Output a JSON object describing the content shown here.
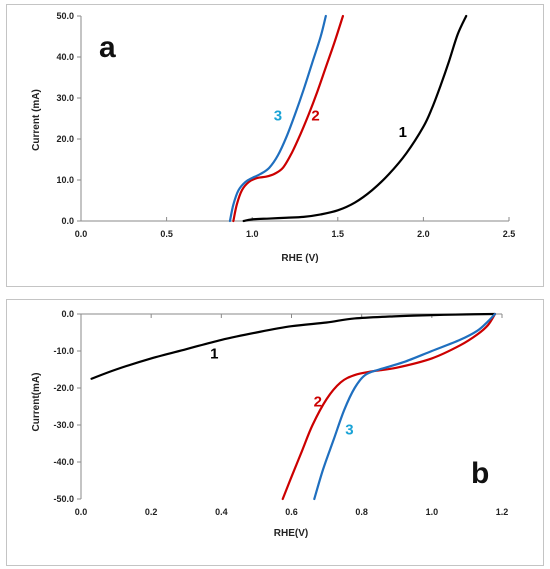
{
  "chart_data": [
    {
      "type": "line",
      "panel": "a",
      "xlabel": "RHE (V)",
      "ylabel": "Current (mA)",
      "xlim": [
        0,
        2.5
      ],
      "ylim": [
        0,
        50
      ],
      "xticks": [
        "0.0",
        "0.5",
        "1.0",
        "1.5",
        "2.0",
        "2.5"
      ],
      "yticks": [
        "0.0",
        "10.0",
        "20.0",
        "30.0",
        "40.0",
        "50.0"
      ],
      "grid": false,
      "legend": "none",
      "series": [
        {
          "name": "1",
          "color": "#000000",
          "points": [
            [
              0.95,
              0
            ],
            [
              1.0,
              0.4
            ],
            [
              1.1,
              0.6
            ],
            [
              1.2,
              0.8
            ],
            [
              1.3,
              1.0
            ],
            [
              1.4,
              1.6
            ],
            [
              1.5,
              2.6
            ],
            [
              1.6,
              4.5
            ],
            [
              1.7,
              7.5
            ],
            [
              1.8,
              11.5
            ],
            [
              1.9,
              16.5
            ],
            [
              2.0,
              23.0
            ],
            [
              2.05,
              27.5
            ],
            [
              2.1,
              33.0
            ],
            [
              2.15,
              39.0
            ],
            [
              2.2,
              45.5
            ],
            [
              2.25,
              50.0
            ]
          ]
        },
        {
          "name": "2",
          "color": "#cc0000",
          "points": [
            [
              0.89,
              0
            ],
            [
              0.91,
              4.0
            ],
            [
              0.94,
              7.5
            ],
            [
              0.98,
              9.5
            ],
            [
              1.03,
              10.5
            ],
            [
              1.08,
              10.8
            ],
            [
              1.13,
              11.5
            ],
            [
              1.18,
              13.0
            ],
            [
              1.23,
              16.5
            ],
            [
              1.28,
              21.0
            ],
            [
              1.33,
              26.0
            ],
            [
              1.38,
              31.5
            ],
            [
              1.43,
              37.5
            ],
            [
              1.48,
              43.5
            ],
            [
              1.53,
              50.0
            ]
          ]
        },
        {
          "name": "3",
          "color": "#1f6fbf",
          "points": [
            [
              0.87,
              0
            ],
            [
              0.89,
              4.0
            ],
            [
              0.92,
              7.5
            ],
            [
              0.96,
              9.5
            ],
            [
              1.0,
              10.5
            ],
            [
              1.05,
              11.5
            ],
            [
              1.1,
              13.0
            ],
            [
              1.15,
              16.0
            ],
            [
              1.2,
              20.5
            ],
            [
              1.25,
              26.0
            ],
            [
              1.3,
              32.0
            ],
            [
              1.35,
              38.5
            ],
            [
              1.4,
              45.0
            ],
            [
              1.43,
              50.0
            ]
          ]
        }
      ],
      "curve_labels": [
        {
          "text": "1",
          "color": "#000000",
          "x": 1.88,
          "y": 20.5
        },
        {
          "text": "2",
          "color": "#cc0000",
          "x": 1.37,
          "y": 24.5
        },
        {
          "text": "3",
          "color": "#1aa3d6",
          "x": 1.15,
          "y": 24.5
        }
      ],
      "panel_label": "a"
    },
    {
      "type": "line",
      "panel": "b",
      "xlabel": "RHE(V)",
      "ylabel": "Current(mA)",
      "xlim": [
        0,
        1.2
      ],
      "ylim": [
        -50,
        0
      ],
      "xticks": [
        "0.0",
        "0.2",
        "0.4",
        "0.6",
        "0.8",
        "1.0",
        "1.2"
      ],
      "yticks": [
        "0.0",
        "-10.0",
        "-20.0",
        "-30.0",
        "-40.0",
        "-50.0"
      ],
      "grid": false,
      "legend": "none",
      "series": [
        {
          "name": "1",
          "color": "#000000",
          "points": [
            [
              0.03,
              -17.5
            ],
            [
              0.1,
              -15.0
            ],
            [
              0.2,
              -12.0
            ],
            [
              0.3,
              -9.5
            ],
            [
              0.4,
              -7.0
            ],
            [
              0.5,
              -5.0
            ],
            [
              0.6,
              -3.3
            ],
            [
              0.7,
              -2.3
            ],
            [
              0.78,
              -1.2
            ],
            [
              0.9,
              -0.6
            ],
            [
              1.0,
              -0.3
            ],
            [
              1.1,
              -0.1
            ],
            [
              1.18,
              0
            ]
          ]
        },
        {
          "name": "2",
          "color": "#cc0000",
          "points": [
            [
              0.575,
              -50.0
            ],
            [
              0.6,
              -44.0
            ],
            [
              0.63,
              -37.0
            ],
            [
              0.66,
              -30.0
            ],
            [
              0.7,
              -23.0
            ],
            [
              0.74,
              -18.5
            ],
            [
              0.78,
              -16.5
            ],
            [
              0.83,
              -15.5
            ],
            [
              0.9,
              -14.5
            ],
            [
              1.0,
              -12.0
            ],
            [
              1.08,
              -8.5
            ],
            [
              1.13,
              -5.5
            ],
            [
              1.16,
              -3.0
            ],
            [
              1.18,
              0
            ]
          ]
        },
        {
          "name": "3",
          "color": "#1f6fbf",
          "points": [
            [
              0.665,
              -50.0
            ],
            [
              0.69,
              -42.0
            ],
            [
              0.72,
              -34.0
            ],
            [
              0.75,
              -26.0
            ],
            [
              0.78,
              -20.0
            ],
            [
              0.81,
              -16.5
            ],
            [
              0.85,
              -15.0
            ],
            [
              0.92,
              -13.0
            ],
            [
              1.0,
              -10.0
            ],
            [
              1.08,
              -7.0
            ],
            [
              1.13,
              -4.5
            ],
            [
              1.16,
              -2.0
            ],
            [
              1.18,
              0
            ]
          ]
        }
      ],
      "curve_labels": [
        {
          "text": "1",
          "color": "#000000",
          "x": 0.38,
          "y": -12.0
        },
        {
          "text": "2",
          "color": "#cc0000",
          "x": 0.675,
          "y": -25.0
        },
        {
          "text": "3",
          "color": "#1aa3d6",
          "x": 0.765,
          "y": -32.5
        }
      ],
      "panel_label": "b"
    }
  ]
}
